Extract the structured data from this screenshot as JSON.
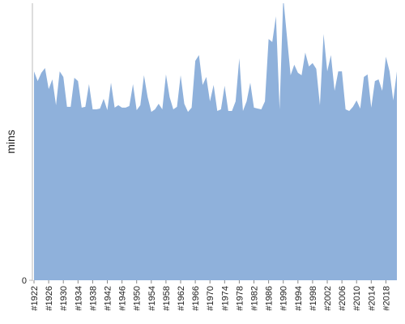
{
  "chart_data": {
    "type": "area",
    "y_label": "mins",
    "color": "#8fb1db",
    "x": [
      1922,
      1923,
      1924,
      1925,
      1926,
      1927,
      1928,
      1929,
      1930,
      1931,
      1932,
      1933,
      1934,
      1935,
      1936,
      1937,
      1938,
      1939,
      1940,
      1941,
      1942,
      1943,
      1944,
      1945,
      1946,
      1947,
      1948,
      1949,
      1950,
      1951,
      1952,
      1953,
      1954,
      1955,
      1956,
      1957,
      1958,
      1959,
      1960,
      1961,
      1962,
      1963,
      1964,
      1965,
      1966,
      1967,
      1968,
      1969,
      1970,
      1971,
      1972,
      1973,
      1974,
      1975,
      1976,
      1977,
      1978,
      1979,
      1980,
      1981,
      1982,
      1983,
      1984,
      1985,
      1986,
      1987,
      1988,
      1989,
      1990,
      1991,
      1992,
      1993,
      1994,
      1995,
      1996,
      1997,
      1998,
      1999,
      2000,
      2001,
      2002,
      2003,
      2004,
      2005,
      2006,
      2007,
      2008,
      2009,
      2010,
      2011,
      2012,
      2013,
      2014,
      2015,
      2016,
      2017,
      2018,
      2019,
      2020,
      2021
    ],
    "values": [
      75.4,
      71.9,
      74.9,
      76.6,
      69,
      72.5,
      63.2,
      75.4,
      73.4,
      62.6,
      62.6,
      73.1,
      71.9,
      62.3,
      62.6,
      70.8,
      61.7,
      61.7,
      62,
      65.5,
      61.4,
      71.3,
      62.3,
      63.2,
      62.3,
      62.3,
      62.9,
      70.8,
      61.4,
      63.2,
      74,
      66.1,
      60.8,
      61.7,
      63.7,
      61.7,
      74.3,
      66.1,
      61.7,
      62.6,
      74,
      63.7,
      60.8,
      62.3,
      79.2,
      81.3,
      70.5,
      73.4,
      64.6,
      70.5,
      61.1,
      61.7,
      70.2,
      61.1,
      61.1,
      64.6,
      80.1,
      61.1,
      64.6,
      71.3,
      62.3,
      62,
      61.7,
      64.6,
      87.1,
      86,
      95.3,
      61.7,
      102,
      88,
      74,
      77.8,
      74.9,
      74,
      82.2,
      77.2,
      78.4,
      76.3,
      63.2,
      88.9,
      75.4,
      81.3,
      68.4,
      75.4,
      75.4,
      61.7,
      61.1,
      62.6,
      64.9,
      62,
      73.4,
      74.3,
      62.3,
      71.9,
      72.5,
      68.4,
      80.7,
      75.4,
      64.9,
      75.4
    ],
    "ylim": [
      0,
      100
    ],
    "yticks": [
      0
    ],
    "xlim": [
      1922,
      2021
    ],
    "xticks": [
      {
        "value": 1922,
        "label": "#1922"
      },
      {
        "value": 1926,
        "label": "#1926"
      },
      {
        "value": 1930,
        "label": "#1930"
      },
      {
        "value": 1934,
        "label": "#1934"
      },
      {
        "value": 1938,
        "label": "#1938"
      },
      {
        "value": 1942,
        "label": "#1942"
      },
      {
        "value": 1946,
        "label": "#1946"
      },
      {
        "value": 1950,
        "label": "#1950"
      },
      {
        "value": 1954,
        "label": "#1954"
      },
      {
        "value": 1958,
        "label": "#1958"
      },
      {
        "value": 1962,
        "label": "#1962"
      },
      {
        "value": 1966,
        "label": "#1966"
      },
      {
        "value": 1970,
        "label": "#1970"
      },
      {
        "value": 1974,
        "label": "#1974"
      },
      {
        "value": 1978,
        "label": "#1978"
      },
      {
        "value": 1982,
        "label": "#1982"
      },
      {
        "value": 1986,
        "label": "#1986"
      },
      {
        "value": 1990,
        "label": "#1990"
      },
      {
        "value": 1994,
        "label": "#1994"
      },
      {
        "value": 1998,
        "label": "#1998"
      },
      {
        "value": 2002,
        "label": "#2002"
      },
      {
        "value": 2006,
        "label": "#2006"
      },
      {
        "value": 2010,
        "label": "#2010"
      },
      {
        "value": 2014,
        "label": "#2014"
      },
      {
        "value": 2018,
        "label": "#2018"
      }
    ]
  }
}
